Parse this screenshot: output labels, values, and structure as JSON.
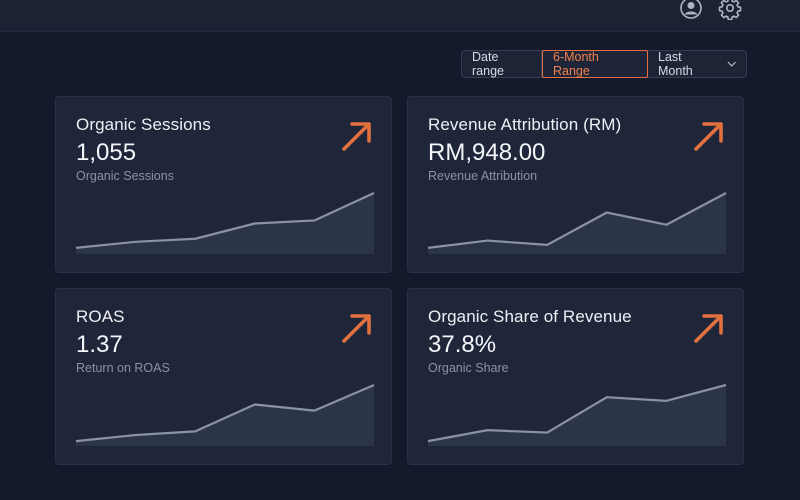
{
  "header": {
    "icons": [
      "user-icon",
      "gear-icon"
    ]
  },
  "filters": {
    "label": "Date range",
    "active": "6-Month Range",
    "dropdown": "Last Month"
  },
  "colors": {
    "accent": "#e4703f",
    "background": "#141a2b",
    "card": "#1f2639",
    "sparkline": "#8a91a8"
  },
  "cards": [
    {
      "title": "Organic Sessions",
      "value": "1,055",
      "subtitle": "Organic Sessions",
      "trend_icon": "arrow-up-right-icon",
      "sparkline": [
        10,
        20,
        25,
        50,
        55,
        100
      ]
    },
    {
      "title": "Revenue Attribution (RM)",
      "value": "RM,948.00",
      "subtitle": "Revenue Attribution",
      "trend_icon": "arrow-up-right-icon",
      "sparkline": [
        10,
        22,
        15,
        68,
        48,
        100
      ]
    },
    {
      "title": "ROAS",
      "value": "1.37",
      "subtitle": "Return on ROAS",
      "trend_icon": "arrow-up-right-icon",
      "sparkline": [
        8,
        18,
        24,
        68,
        58,
        100
      ]
    },
    {
      "title": "Organic Share of Revenue",
      "value": "37.8%",
      "subtitle": "Organic Share",
      "trend_icon": "arrow-up-right-icon",
      "sparkline": [
        8,
        26,
        22,
        80,
        74,
        100
      ]
    }
  ]
}
